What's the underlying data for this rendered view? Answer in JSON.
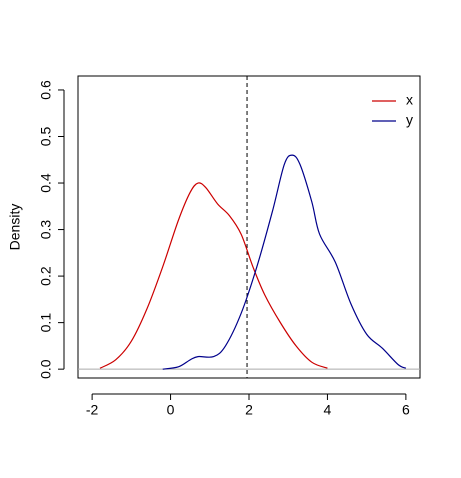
{
  "chart_data": {
    "type": "line",
    "y_label": "Density",
    "xlim": [
      -2.36,
      6.36
    ],
    "ylim": [
      -0.019,
      0.63
    ],
    "xticks": [
      -2,
      0,
      2,
      4,
      6
    ],
    "yticks": [
      {
        "value": 0,
        "label": "0.0"
      },
      0.1,
      0.2,
      0.3,
      0.4,
      0.5,
      0.6
    ],
    "vline": 1.95,
    "hline": 0,
    "legend": "top-right",
    "series": [
      {
        "name": "x",
        "color": "#cc0000",
        "x": [
          -1.8,
          -1.4,
          -1.0,
          -0.6,
          -0.2,
          0.2,
          0.5,
          0.7,
          0.9,
          1.2,
          1.5,
          1.8,
          2.1,
          2.4,
          2.8,
          3.2,
          3.6,
          4.0
        ],
        "values": [
          0.002,
          0.02,
          0.06,
          0.13,
          0.22,
          0.32,
          0.38,
          0.4,
          0.39,
          0.355,
          0.33,
          0.29,
          0.22,
          0.16,
          0.1,
          0.05,
          0.015,
          0.002
        ]
      },
      {
        "name": "y",
        "color": "#00008b",
        "x": [
          -0.2,
          0.2,
          0.5,
          0.7,
          1.1,
          1.4,
          1.8,
          2.2,
          2.6,
          2.9,
          3.1,
          3.3,
          3.6,
          3.8,
          4.2,
          4.6,
          5.0,
          5.4,
          5.8,
          6.0
        ],
        "values": [
          0.0,
          0.005,
          0.02,
          0.027,
          0.027,
          0.05,
          0.12,
          0.22,
          0.34,
          0.44,
          0.46,
          0.44,
          0.36,
          0.29,
          0.23,
          0.14,
          0.075,
          0.045,
          0.01,
          0.002
        ]
      }
    ]
  }
}
